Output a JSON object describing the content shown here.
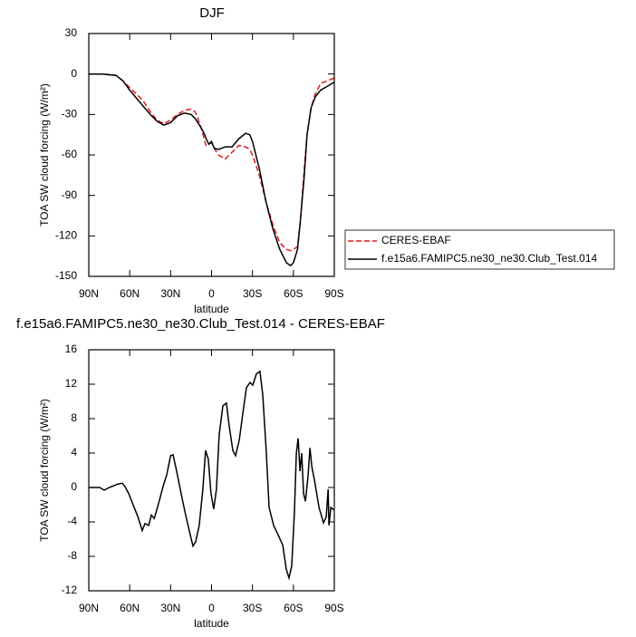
{
  "chart_data": [
    {
      "type": "line",
      "title": "DJF",
      "xlabel": "latitude",
      "ylabel": "TOA SW cloud forcing (W/m²)",
      "x": [
        90,
        80,
        70,
        65,
        60,
        55,
        50,
        45,
        40,
        35,
        30,
        25,
        20,
        15,
        12,
        10,
        7,
        5,
        4,
        2,
        0,
        -2,
        -5,
        -10,
        -15,
        -20,
        -25,
        -28,
        -30,
        -35,
        -40,
        -45,
        -50,
        -55,
        -58,
        -60,
        -63,
        -65,
        -68,
        -70,
        -73,
        -76,
        -80,
        -85,
        -90
      ],
      "series": [
        {
          "name": "CERES-EBAF",
          "color": "#e0191e",
          "dashed": true,
          "values": [
            0,
            0,
            -1,
            -5,
            -10,
            -15,
            -20,
            -28,
            -34,
            -37,
            -34,
            -30,
            -27,
            -26,
            -28,
            -33,
            -42,
            -50,
            -53,
            -52,
            -51,
            -55,
            -60,
            -63,
            -58,
            -53,
            -54,
            -56,
            -60,
            -75,
            -95,
            -112,
            -125,
            -130,
            -131,
            -130,
            -128,
            -110,
            -70,
            -45,
            -25,
            -15,
            -7,
            -5,
            -3
          ]
        },
        {
          "name": "f.e15a6.FAMIPC5.ne30_ne30.Club_Test.014",
          "color": "#000000",
          "dashed": false,
          "values": [
            0,
            0,
            -1,
            -5,
            -12,
            -18,
            -24,
            -30,
            -35,
            -38,
            -36,
            -31,
            -29,
            -30,
            -33,
            -36,
            -41,
            -45,
            -48,
            -52,
            -50,
            -55,
            -56,
            -54,
            -54,
            -48,
            -44,
            -45,
            -50,
            -70,
            -95,
            -115,
            -130,
            -140,
            -142,
            -140,
            -130,
            -110,
            -75,
            -45,
            -25,
            -17,
            -12,
            -9,
            -6
          ]
        }
      ],
      "xlim": [
        90,
        -90
      ],
      "xticks": [
        {
          "value": 90,
          "label": "90N"
        },
        {
          "value": 60,
          "label": "60N"
        },
        {
          "value": 30,
          "label": "30N"
        },
        0,
        {
          "value": -30,
          "label": "30S"
        },
        {
          "value": -60,
          "label": "60S"
        },
        {
          "value": -90,
          "label": "90S"
        }
      ],
      "ylim": [
        -150,
        30
      ],
      "yticks": [
        30,
        0,
        -30,
        -60,
        -90,
        -120,
        -150
      ],
      "legend": "outside-right"
    },
    {
      "type": "line",
      "title": "f.e15a6.FAMIPC5.ne30_ne30.Club_Test.014 - CERES-EBAF",
      "xlabel": "latitude",
      "ylabel": "TOA SW cloud forcing (W/m²)",
      "x": [
        90,
        82,
        78.7,
        75,
        68.7,
        65.4,
        63.4,
        60.8,
        57.5,
        54,
        50.8,
        48.8,
        46,
        44.2,
        42,
        38.7,
        35.4,
        32.8,
        30,
        28.2,
        25.6,
        22.3,
        19,
        15.6,
        13.6,
        11.6,
        9,
        6.4,
        4.4,
        2.4,
        0.4,
        -1.6,
        -3.6,
        -5.6,
        -8.3,
        -10.9,
        -12.9,
        -15.6,
        -17.6,
        -20.3,
        -22.9,
        -25.6,
        -28.2,
        -30.2,
        -32.9,
        -35.5,
        -37.5,
        -40.2,
        -42.2,
        -45.5,
        -48.8,
        -52.2,
        -54.8,
        -56.8,
        -58.8,
        -60.8,
        -62.2,
        -63.5,
        -64.8,
        -66.1,
        -67.5,
        -68.8,
        -70.8,
        -72.1,
        -73.5,
        -75.5,
        -78.8,
        -82.1,
        -84.1,
        -85.5,
        -86.1,
        -87.5,
        -89.5
      ],
      "series": [
        {
          "color": "#000000",
          "values": [
            0,
            0,
            -0.3,
            0,
            0.4,
            0.5,
            0.1,
            -0.7,
            -2,
            -3.4,
            -5,
            -4.2,
            -4.4,
            -3.2,
            -3.6,
            -1.8,
            0.2,
            1.5,
            3.7,
            3.8,
            1.9,
            -0.7,
            -3.2,
            -5.5,
            -6.8,
            -6.3,
            -4.4,
            -0.2,
            4.3,
            3.3,
            -0.7,
            -2.5,
            -0.2,
            6.1,
            9.5,
            9.8,
            7.2,
            4.3,
            3.7,
            5.5,
            8.6,
            11.6,
            12.2,
            11.9,
            13.2,
            13.5,
            10.8,
            4,
            -2.3,
            -4.4,
            -5.5,
            -6.7,
            -9.5,
            -10.5,
            -9.1,
            -2.8,
            4,
            5.7,
            1.9,
            4,
            -0.7,
            -1.6,
            1.4,
            4.6,
            2.4,
            0.8,
            -2.3,
            -4.1,
            -3.4,
            -0.2,
            -4.4,
            -2.3,
            -2.6
          ]
        }
      ],
      "xlim": [
        90,
        -90
      ],
      "xticks": [
        {
          "value": 90,
          "label": "90N"
        },
        {
          "value": 60,
          "label": "60N"
        },
        {
          "value": 30,
          "label": "30N"
        },
        0,
        {
          "value": -30,
          "label": "30S"
        },
        {
          "value": -60,
          "label": "60S"
        },
        {
          "value": -90,
          "label": "90S"
        }
      ],
      "ylim": [
        -12,
        16
      ],
      "yticks": [
        16,
        12,
        8,
        4,
        0,
        -4,
        -8,
        -12
      ]
    }
  ]
}
